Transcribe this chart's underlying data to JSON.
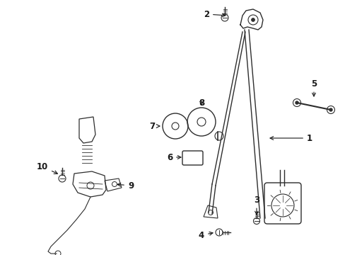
{
  "bg_color": "#ffffff",
  "line_color": "#2d2d2d",
  "label_color": "#1a1a1a",
  "figsize": [
    4.89,
    3.6
  ],
  "dpi": 100
}
